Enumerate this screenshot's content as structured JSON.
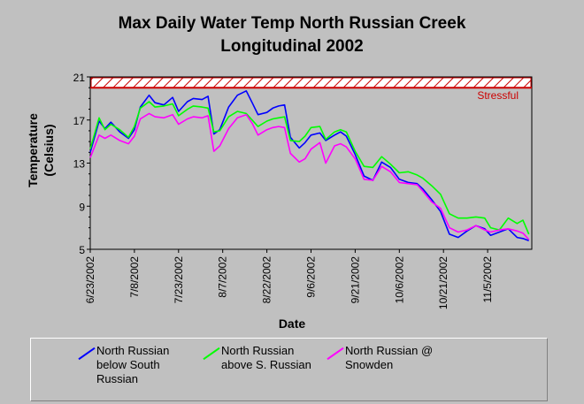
{
  "title_line1": "Max Daily Water Temp North Russian Creek",
  "title_line2": "Longitudinal 2002",
  "chart_data": {
    "type": "line",
    "title": "Max Daily Water Temp North Russian Creek Longitudinal 2002",
    "xlabel": "Date",
    "ylabel_line1": "Temperature",
    "ylabel_line2": "(Celsius)",
    "ylim": [
      5,
      21
    ],
    "yticks": [
      5,
      9,
      13,
      17,
      21
    ],
    "xticks": [
      "6/23/2002",
      "7/8/2002",
      "7/23/2002",
      "8/7/2002",
      "8/22/2002",
      "9/6/2002",
      "9/21/2002",
      "10/6/2002",
      "10/21/2002",
      "11/5/2002"
    ],
    "xlim_days": [
      0,
      150
    ],
    "threshold": {
      "label": "Stressful",
      "value": 20,
      "band": [
        20,
        21
      ],
      "color": "#cc0000"
    },
    "series": [
      {
        "name": "North Russian below South Russian",
        "color": "#0000ff",
        "x": [
          0,
          3,
          5,
          7,
          10,
          13,
          15,
          17,
          20,
          22,
          25,
          28,
          30,
          33,
          35,
          38,
          40,
          42,
          44,
          47,
          50,
          53,
          55,
          57,
          60,
          62,
          64,
          66,
          68,
          71,
          73,
          75,
          78,
          80,
          83,
          85,
          87,
          90,
          93,
          96,
          99,
          102,
          105,
          108,
          111,
          113,
          116,
          119,
          122,
          125,
          128,
          131,
          134,
          136,
          139,
          142,
          145,
          147,
          149
        ],
        "y": [
          14,
          16.9,
          16.2,
          16.8,
          15.9,
          15.3,
          16.1,
          18.2,
          19.3,
          18.6,
          18.4,
          19.1,
          17.8,
          18.7,
          19.0,
          18.9,
          19.2,
          15.7,
          16.1,
          18.2,
          19.3,
          19.7,
          18.6,
          17.5,
          17.7,
          18.1,
          18.3,
          18.4,
          15.4,
          14.4,
          14.9,
          15.6,
          15.8,
          15.1,
          15.6,
          15.9,
          15.5,
          13.8,
          11.8,
          11.4,
          13.1,
          12.6,
          11.5,
          11.2,
          11.1,
          10.6,
          9.6,
          8.5,
          6.4,
          6.1,
          6.7,
          7.2,
          6.9,
          6.3,
          6.6,
          6.9,
          6.1,
          6.0,
          5.8
        ]
      },
      {
        "name": "North Russian above S. Russian",
        "color": "#00ff00",
        "x": [
          0,
          3,
          5,
          7,
          10,
          13,
          15,
          17,
          20,
          22,
          25,
          28,
          30,
          33,
          35,
          38,
          40,
          42,
          44,
          47,
          50,
          53,
          55,
          57,
          60,
          62,
          64,
          66,
          68,
          71,
          73,
          75,
          78,
          80,
          83,
          85,
          87,
          90,
          93,
          96,
          99,
          102,
          105,
          108,
          111,
          113,
          116,
          119,
          122,
          125,
          128,
          131,
          134,
          136,
          139,
          142,
          145,
          147,
          149
        ],
        "y": [
          14.3,
          17.2,
          16.1,
          16.6,
          16.1,
          15.4,
          16.4,
          18.1,
          18.7,
          18.2,
          18.3,
          18.5,
          17.4,
          18.0,
          18.3,
          18.2,
          18.1,
          15.9,
          16.0,
          17.3,
          17.8,
          17.6,
          17.0,
          16.4,
          16.9,
          17.1,
          17.2,
          17.3,
          15.1,
          15.0,
          15.5,
          16.3,
          16.4,
          15.2,
          15.9,
          16.1,
          15.9,
          14.1,
          12.7,
          12.6,
          13.6,
          12.9,
          12.1,
          12.2,
          11.9,
          11.6,
          10.9,
          10.1,
          8.3,
          7.9,
          7.9,
          8.0,
          7.9,
          7.0,
          6.8,
          7.9,
          7.4,
          7.7,
          6.4
        ]
      },
      {
        "name": "North Russian @ Snowden",
        "color": "#ff00ff",
        "x": [
          0,
          3,
          5,
          7,
          10,
          13,
          15,
          17,
          20,
          22,
          25,
          28,
          30,
          33,
          35,
          38,
          40,
          42,
          44,
          47,
          50,
          53,
          55,
          57,
          60,
          62,
          64,
          66,
          68,
          71,
          73,
          75,
          78,
          80,
          83,
          85,
          87,
          90,
          93,
          96,
          99,
          102,
          105,
          108,
          111,
          113,
          116,
          119,
          122,
          125,
          128,
          131,
          134,
          136,
          139,
          142,
          145,
          147,
          149
        ],
        "y": [
          13.5,
          15.6,
          15.3,
          15.6,
          15.1,
          14.8,
          15.5,
          17.1,
          17.6,
          17.3,
          17.2,
          17.5,
          16.6,
          17.1,
          17.3,
          17.2,
          17.4,
          14.1,
          14.6,
          16.2,
          17.2,
          17.5,
          16.7,
          15.6,
          16.1,
          16.3,
          16.4,
          16.3,
          13.9,
          13.1,
          13.4,
          14.3,
          14.9,
          13.0,
          14.6,
          14.8,
          14.5,
          13.4,
          11.5,
          11.4,
          12.7,
          12.2,
          11.2,
          11.1,
          11.0,
          10.4,
          9.4,
          8.8,
          7.0,
          6.6,
          6.8,
          7.2,
          6.8,
          6.6,
          6.8,
          6.9,
          6.7,
          6.5,
          5.9
        ]
      }
    ]
  },
  "legend": [
    {
      "line1": "North Russian",
      "line2": "below South",
      "line3": "Russian"
    },
    {
      "line1": "North Russian",
      "line2": "above S. Russian",
      "line3": ""
    },
    {
      "line1": "North Russian @",
      "line2": "Snowden",
      "line3": ""
    }
  ]
}
